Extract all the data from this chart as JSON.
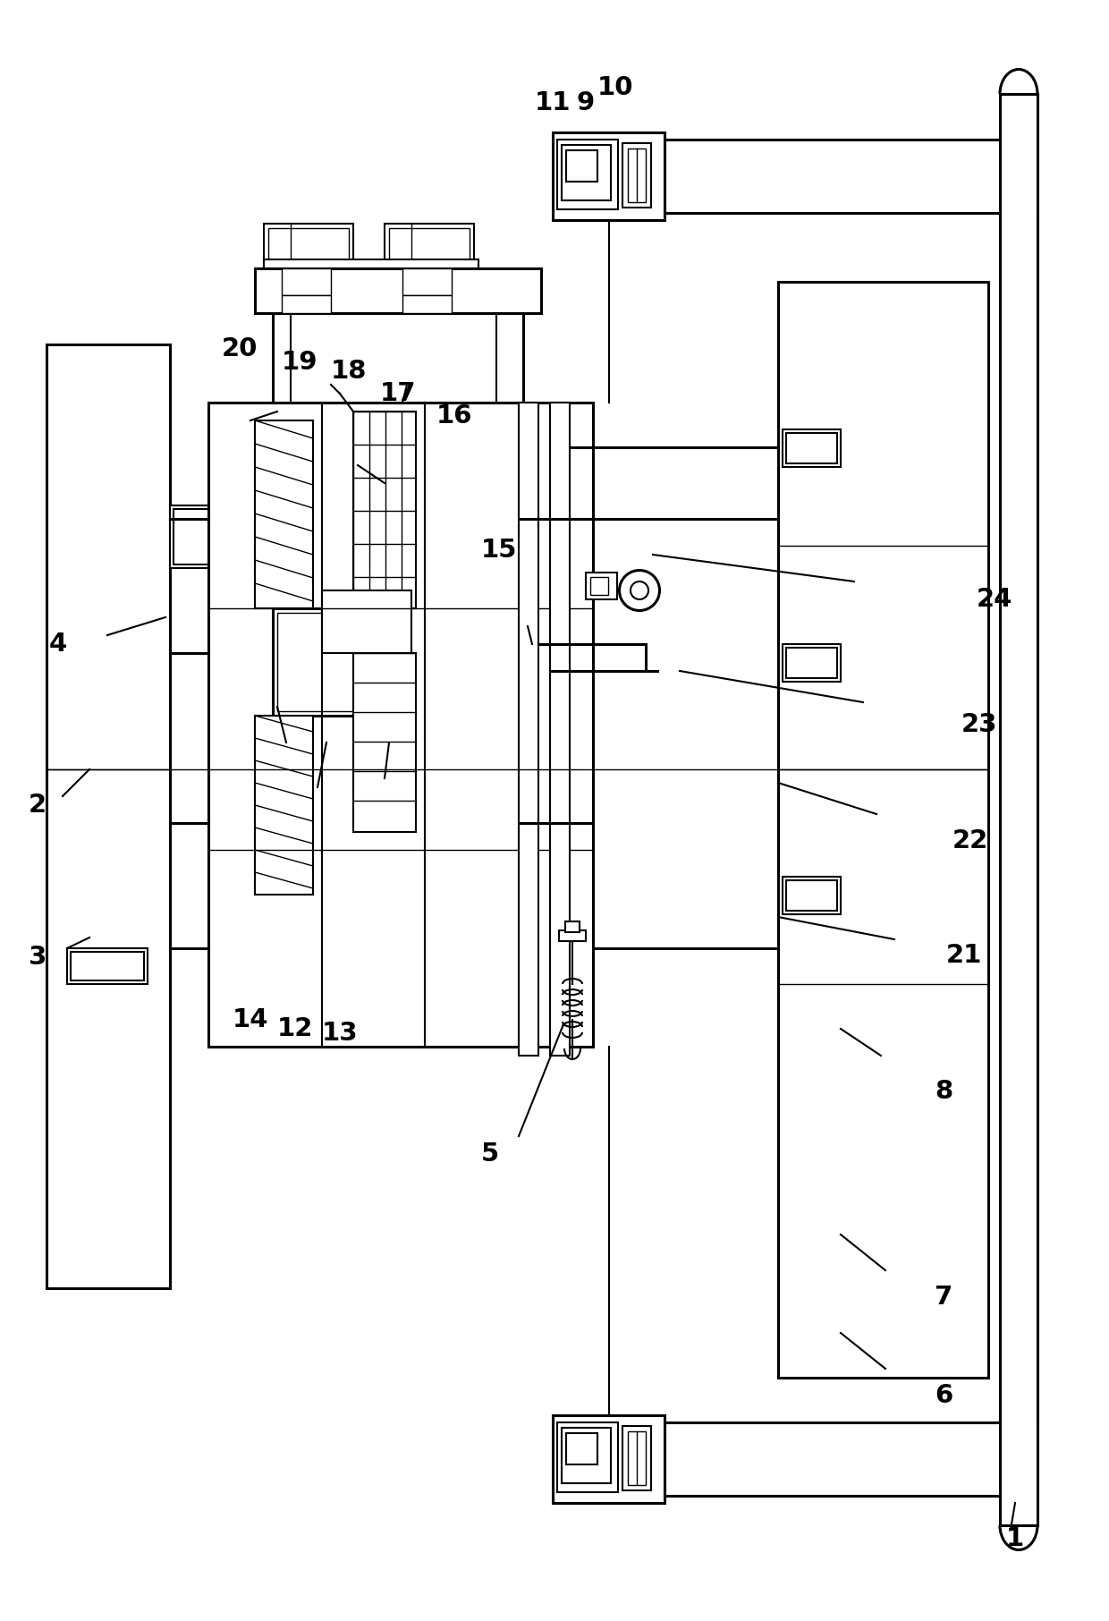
{
  "bg_color": "#ffffff",
  "lc": "#000000",
  "lw": 1.5,
  "lw2": 2.2,
  "lw3": 1.0,
  "figsize": [
    12.4,
    18.12
  ],
  "dpi": 100
}
